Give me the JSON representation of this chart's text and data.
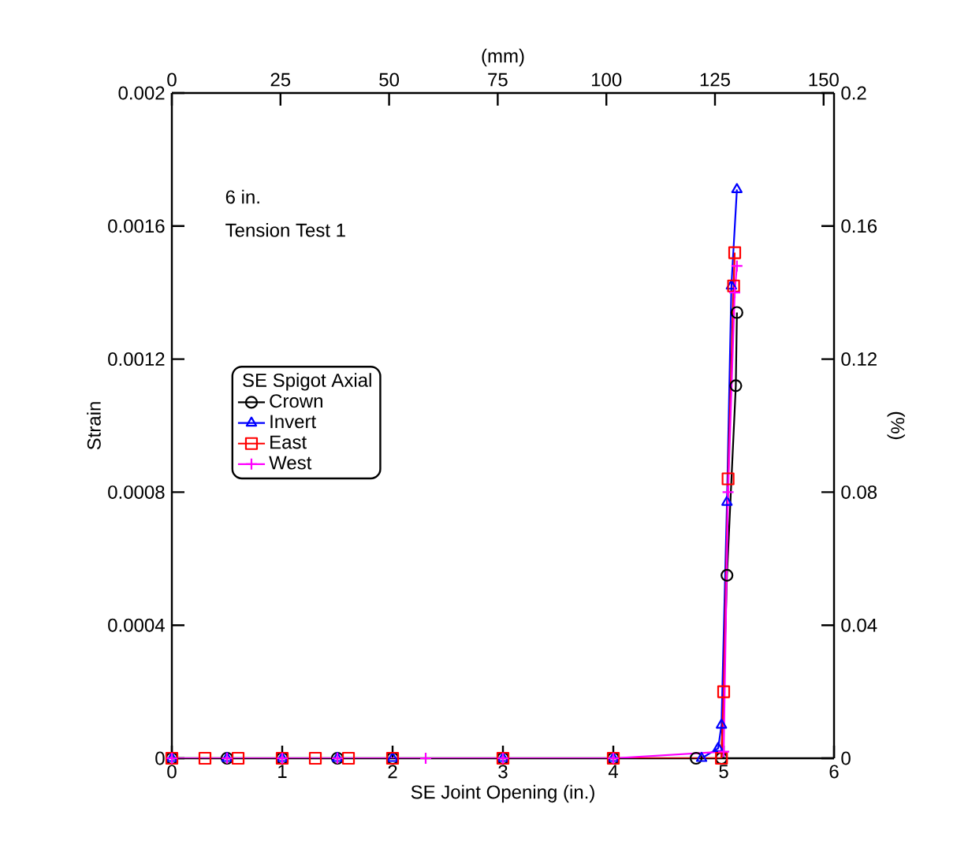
{
  "chart_data": {
    "type": "line",
    "xlabel": "SE Joint Opening (in.)",
    "ylabel": "Strain",
    "x2label": "(mm)",
    "y2label": "(%)",
    "xlim": [
      0,
      6
    ],
    "xticks": [
      0,
      1,
      2,
      3,
      4,
      5,
      6
    ],
    "ylim": [
      0,
      0.002
    ],
    "yticks": [
      0,
      0.0004,
      0.0008,
      0.0012,
      0.0016,
      0.002
    ],
    "x2lim": [
      0,
      152.4
    ],
    "x2ticks": [
      0,
      25,
      50,
      75,
      100,
      125,
      150
    ],
    "y2lim": [
      0,
      0.2
    ],
    "y2ticks": [
      0,
      0.04,
      0.08,
      0.12,
      0.16,
      0.2
    ],
    "legend_title": "SE Spigot Axial",
    "legend": "left",
    "grid": false,
    "line_style": "solid",
    "annotations": [
      "6 in.",
      "Tension Test 1"
    ],
    "series": [
      {
        "name": "Crown",
        "color": "#000000",
        "marker": "circle",
        "x": [
          0,
          0.5,
          1,
          1.5,
          2,
          3,
          4,
          4.75,
          4.98,
          5.03,
          5.11,
          5.12
        ],
        "values": [
          0,
          0,
          0,
          0,
          0,
          0,
          0,
          0,
          0,
          0.00055,
          0.00112,
          0.00134
        ]
      },
      {
        "name": "Invert",
        "color": "#0000ff",
        "marker": "triangle",
        "x": [
          0,
          0.5,
          1,
          1.5,
          2,
          3,
          4,
          4.8,
          4.95,
          4.98,
          5.03,
          5.07,
          5.12
        ],
        "values": [
          0,
          0,
          0,
          0,
          0,
          0,
          0,
          0,
          3e-05,
          0.0001,
          0.00077,
          0.00142,
          0.00171
        ]
      },
      {
        "name": "East",
        "color": "#ff0000",
        "marker": "square",
        "x": [
          0,
          0.3,
          0.6,
          1,
          1.3,
          1.6,
          2,
          3,
          4,
          4.98,
          5.0,
          5.04,
          5.09,
          5.1
        ],
        "values": [
          0,
          0,
          0,
          0,
          0,
          0,
          0,
          0,
          0,
          0,
          0.0002,
          0.00084,
          0.00142,
          0.00152
        ]
      },
      {
        "name": "West",
        "color": "#ff00ff",
        "marker": "cross",
        "x": [
          0,
          0.5,
          1,
          1.5,
          2.3,
          3,
          4,
          5.0,
          5.04,
          5.1,
          5.12
        ],
        "values": [
          0,
          0,
          0,
          0,
          0,
          0,
          0,
          2e-05,
          0.0008,
          0.0014,
          0.00148
        ]
      }
    ]
  }
}
